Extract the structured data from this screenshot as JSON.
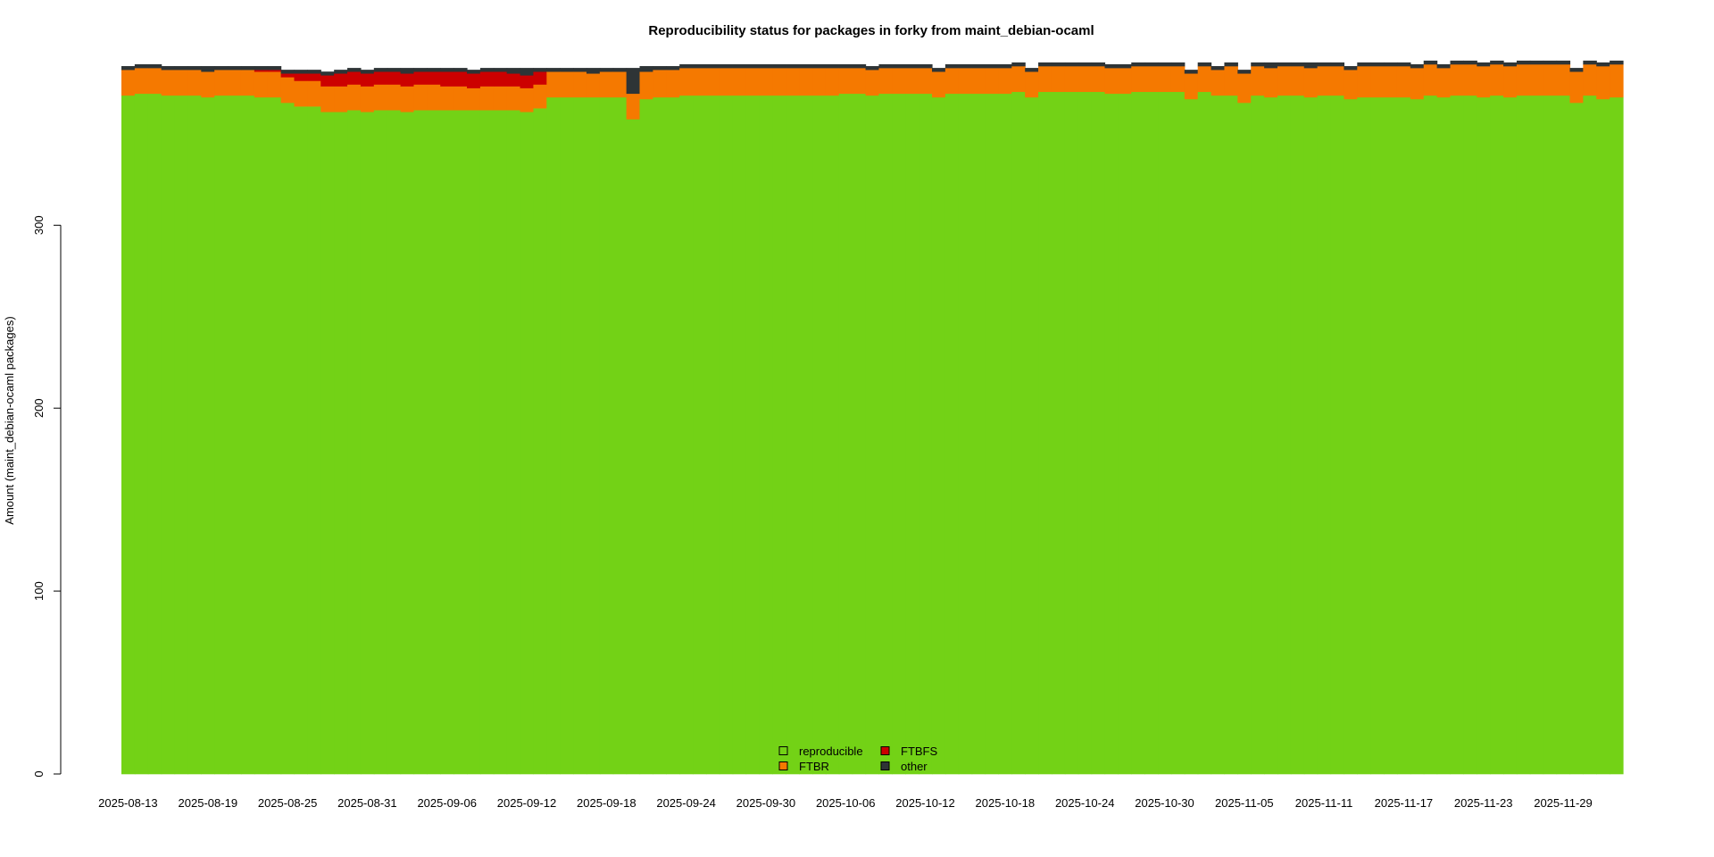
{
  "chart_data": {
    "type": "bar",
    "stacked": true,
    "title": "Reproducibility status for packages in forky from maint_debian-ocaml",
    "xlabel": "",
    "ylabel": "Amount (maint_debian-ocaml packages)",
    "ylim": [
      0,
      400
    ],
    "yticks": [
      0,
      100,
      200,
      300
    ],
    "grid": false,
    "legend_position": "bottom-center",
    "x_start": "2025-08-13",
    "x_end": "2025-12-03",
    "xtick_labels": [
      "2025-08-13",
      "2025-08-19",
      "2025-08-25",
      "2025-08-31",
      "2025-09-06",
      "2025-09-12",
      "2025-09-18",
      "2025-09-24",
      "2025-09-30",
      "2025-10-06",
      "2025-10-12",
      "2025-10-18",
      "2025-10-24",
      "2025-10-30",
      "2025-11-05",
      "2025-11-11",
      "2025-11-17",
      "2025-11-23",
      "2025-11-29"
    ],
    "series": [
      {
        "name": "reproducible",
        "color": "#73d216",
        "values": [
          371,
          372,
          372,
          371,
          371,
          371,
          370,
          371,
          371,
          371,
          370,
          370,
          367,
          365,
          365,
          362,
          362,
          363,
          362,
          363,
          363,
          362,
          363,
          363,
          363,
          363,
          363,
          363,
          363,
          363,
          362,
          364,
          370,
          370,
          370,
          370,
          370,
          370,
          358,
          369,
          370,
          370,
          371,
          371,
          371,
          371,
          371,
          371,
          371,
          371,
          371,
          371,
          371,
          371,
          372,
          372,
          371,
          372,
          372,
          372,
          372,
          370,
          372,
          372,
          372,
          372,
          372,
          373,
          370,
          373,
          373,
          373,
          373,
          373,
          372,
          372,
          373,
          373,
          373,
          373,
          369,
          373,
          371,
          371,
          367,
          371,
          370,
          371,
          371,
          370,
          371,
          371,
          369,
          370,
          370,
          370,
          370,
          369,
          371,
          370,
          371,
          371,
          370,
          371,
          370,
          371,
          371,
          371,
          371,
          367,
          371,
          369,
          370
        ]
      },
      {
        "name": "FTBR",
        "color": "#f57900",
        "values": [
          14,
          14,
          14,
          14,
          14,
          14,
          14,
          14,
          14,
          14,
          14,
          14,
          14,
          14,
          14,
          14,
          14,
          14,
          14,
          14,
          14,
          14,
          14,
          14,
          13,
          13,
          12,
          13,
          13,
          13,
          13,
          13,
          14,
          14,
          14,
          13,
          14,
          14,
          14,
          15,
          15,
          15,
          15,
          15,
          15,
          15,
          15,
          15,
          15,
          15,
          15,
          15,
          15,
          15,
          14,
          14,
          14,
          14,
          14,
          14,
          14,
          14,
          14,
          14,
          14,
          14,
          14,
          14,
          14,
          14,
          14,
          14,
          14,
          14,
          14,
          14,
          14,
          14,
          14,
          14,
          14,
          14,
          14,
          16,
          16,
          16,
          16,
          16,
          16,
          16,
          16,
          16,
          16,
          17,
          17,
          17,
          17,
          17,
          17,
          16,
          17,
          17,
          17,
          17,
          17,
          17,
          17,
          17,
          17,
          17,
          17,
          18,
          18
        ]
      },
      {
        "name": "FTBFS",
        "color": "#cc0000",
        "values": [
          0,
          0,
          0,
          0,
          0,
          0,
          0,
          0,
          0,
          0,
          1,
          1,
          2,
          4,
          4,
          6,
          7,
          7,
          7,
          7,
          7,
          7,
          7,
          7,
          8,
          8,
          8,
          8,
          8,
          7,
          7,
          7,
          0,
          0,
          0,
          0,
          0,
          0,
          0,
          0,
          0,
          0,
          0,
          0,
          0,
          0,
          0,
          0,
          0,
          0,
          0,
          0,
          0,
          0,
          0,
          0,
          0,
          0,
          0,
          0,
          0,
          0,
          0,
          0,
          0,
          0,
          0,
          0,
          0,
          0,
          0,
          0,
          0,
          0,
          0,
          0,
          0,
          0,
          0,
          0,
          0,
          0,
          0,
          0,
          0,
          0,
          0,
          0,
          0,
          0,
          0,
          0,
          0,
          0,
          0,
          0,
          0,
          0,
          0,
          0,
          0,
          0,
          0,
          0,
          0,
          0,
          0,
          0,
          0,
          0,
          0,
          0,
          0
        ]
      },
      {
        "name": "other",
        "color": "#2e3436",
        "values": [
          2,
          2,
          2,
          2,
          2,
          2,
          3,
          2,
          2,
          2,
          2,
          2,
          2,
          2,
          2,
          2,
          2,
          2,
          2,
          2,
          2,
          3,
          2,
          2,
          2,
          2,
          2,
          2,
          2,
          3,
          4,
          2,
          2,
          2,
          2,
          3,
          2,
          2,
          14,
          3,
          2,
          2,
          2,
          2,
          2,
          2,
          2,
          2,
          2,
          2,
          2,
          2,
          2,
          2,
          2,
          2,
          2,
          2,
          2,
          2,
          2,
          2,
          2,
          2,
          2,
          2,
          2,
          2,
          2,
          2,
          2,
          2,
          2,
          2,
          2,
          2,
          2,
          2,
          2,
          2,
          2,
          2,
          2,
          2,
          2,
          2,
          3,
          2,
          2,
          3,
          2,
          2,
          2,
          2,
          2,
          2,
          2,
          2,
          2,
          2,
          2,
          2,
          2,
          2,
          2,
          2,
          2,
          2,
          2,
          2,
          2,
          2,
          2
        ]
      }
    ]
  }
}
